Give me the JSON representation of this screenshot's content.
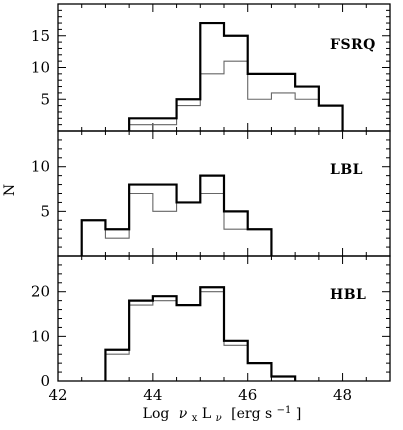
{
  "chart_data": {
    "type": "histogram",
    "x_axis": {
      "label_prefix": "Log",
      "label_nu": "ν",
      "label_x": "x",
      "label_L": "L",
      "label_nu_sub": "ν",
      "label_units": "[erg s",
      "label_exp": "−1",
      "label_close": "]",
      "range": [
        42,
        49
      ],
      "ticks": [
        42,
        44,
        46,
        48
      ],
      "tick_labels": [
        "42",
        "44",
        "46",
        "48"
      ]
    },
    "y_axis_label": "N",
    "bin_width": 0.5,
    "panels": [
      {
        "name": "FSRQ",
        "ylim": [
          0,
          20
        ],
        "yticks": [
          5,
          10,
          15
        ],
        "ytick_labels": [
          "5",
          "10",
          "15"
        ],
        "series": [
          {
            "style": "thick-black",
            "bins": [
              [
                43.5,
                2
              ],
              [
                44.0,
                2
              ],
              [
                44.5,
                5
              ],
              [
                45.0,
                17
              ],
              [
                45.5,
                15
              ],
              [
                46.0,
                9
              ],
              [
                46.5,
                9
              ],
              [
                47.0,
                7
              ],
              [
                47.5,
                4
              ]
            ]
          },
          {
            "style": "thin-gray",
            "bins": [
              [
                43.5,
                1
              ],
              [
                44.0,
                1
              ],
              [
                44.5,
                4
              ],
              [
                45.0,
                9
              ],
              [
                45.5,
                11
              ],
              [
                46.0,
                5
              ],
              [
                46.5,
                6
              ],
              [
                47.0,
                5
              ],
              [
                47.5,
                4
              ]
            ]
          }
        ]
      },
      {
        "name": "LBL",
        "ylim": [
          0,
          14
        ],
        "yticks": [
          5,
          10
        ],
        "ytick_labels": [
          "5",
          "10"
        ],
        "series": [
          {
            "style": "thick-black",
            "bins": [
              [
                42.5,
                4
              ],
              [
                43.0,
                3
              ],
              [
                43.5,
                8
              ],
              [
                44.0,
                8
              ],
              [
                44.5,
                6
              ],
              [
                45.0,
                9
              ],
              [
                45.5,
                5
              ],
              [
                46.0,
                3
              ]
            ]
          },
          {
            "style": "thin-gray",
            "bins": [
              [
                42.5,
                4
              ],
              [
                43.0,
                2
              ],
              [
                43.5,
                7
              ],
              [
                44.0,
                5
              ],
              [
                44.5,
                6
              ],
              [
                45.0,
                7
              ],
              [
                45.5,
                3
              ],
              [
                46.0,
                3
              ]
            ]
          }
        ]
      },
      {
        "name": "HBL",
        "ylim": [
          0,
          28
        ],
        "yticks": [
          0,
          10,
          20
        ],
        "ytick_labels": [
          "0",
          "10",
          "20"
        ],
        "series": [
          {
            "style": "thick-black",
            "bins": [
              [
                43.0,
                7
              ],
              [
                43.5,
                18
              ],
              [
                44.0,
                19
              ],
              [
                44.5,
                17
              ],
              [
                45.0,
                21
              ],
              [
                45.5,
                9
              ],
              [
                46.0,
                4
              ],
              [
                46.5,
                1
              ]
            ]
          },
          {
            "style": "thin-gray",
            "bins": [
              [
                43.0,
                6
              ],
              [
                43.5,
                17
              ],
              [
                44.0,
                18
              ],
              [
                44.5,
                17
              ],
              [
                45.0,
                20
              ],
              [
                45.5,
                8
              ],
              [
                46.0,
                4
              ],
              [
                46.5,
                1
              ]
            ]
          }
        ]
      }
    ],
    "colors": {
      "thick": "#000000",
      "thin": "#666666"
    }
  }
}
